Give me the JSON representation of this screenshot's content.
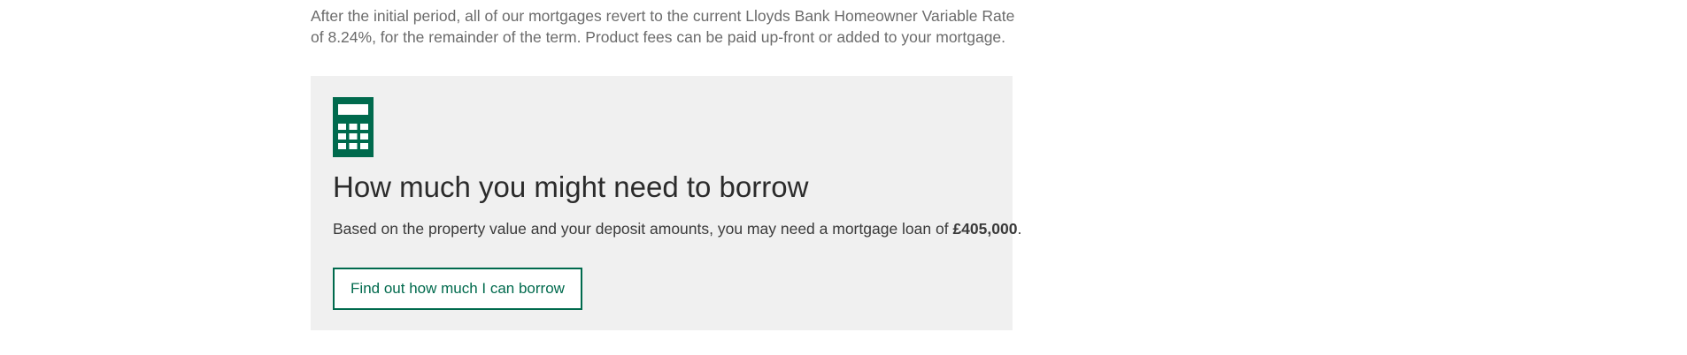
{
  "intro": {
    "text": "After the initial period, all of our mortgages revert to the current Lloyds Bank Homeowner Variable Rate of 8.24%, for the remainder of the term. Product fees can be paid up-front or added to your mortgage."
  },
  "borrow_panel": {
    "icon": "calculator-icon",
    "title": "How much you might need to borrow",
    "text_prefix": "Based on the property value and your deposit amounts, you may need a mortgage loan of ",
    "loan_amount": "£405,000",
    "text_suffix": ".",
    "button_label": "Find out how much I can borrow"
  },
  "colors": {
    "brand_green": "#006a4d",
    "panel_background": "#f0f0f0",
    "intro_text": "#6b6b6b",
    "heading_text": "#2b2b2b"
  }
}
